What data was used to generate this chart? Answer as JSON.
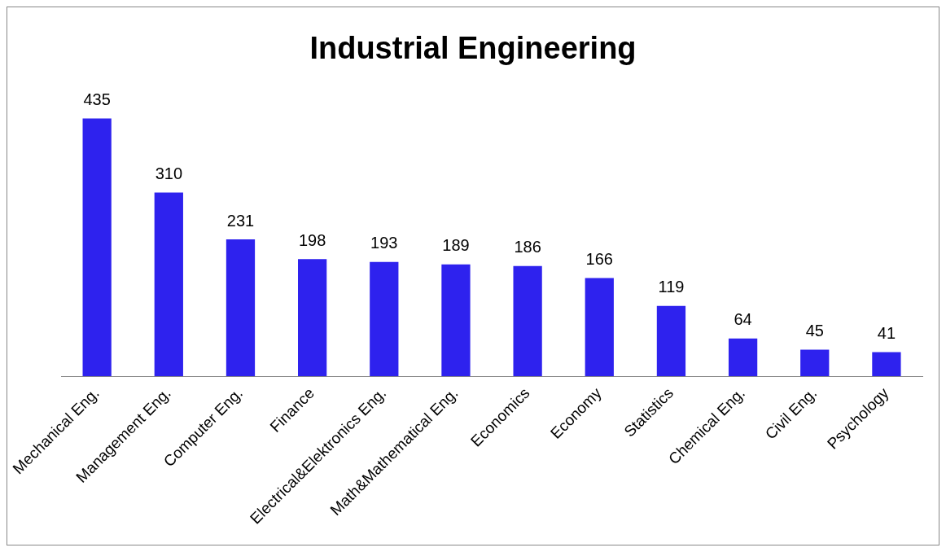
{
  "chart_data": {
    "type": "bar",
    "title": "Industrial Engineering",
    "categories": [
      "Mechanical Eng.",
      "Management Eng.",
      "Computer Eng.",
      "Finance",
      "Electrical&Elektronics Eng.",
      "Math&Mathematical Eng.",
      "Economics",
      "Economy",
      "Statistics",
      "Chemical Eng.",
      "Civil Eng.",
      "Psychology"
    ],
    "values": [
      435,
      310,
      231,
      198,
      193,
      189,
      186,
      166,
      119,
      64,
      45,
      41
    ],
    "color": "#2e22ee",
    "data_labels": true,
    "grid": false,
    "legend": false
  }
}
